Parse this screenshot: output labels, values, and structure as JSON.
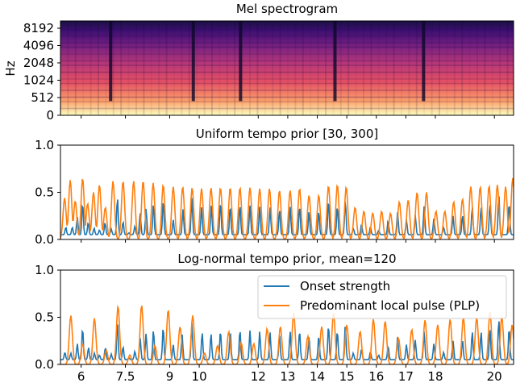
{
  "chart_data": [
    {
      "type": "heatmap",
      "title": "Mel spectrogram",
      "ylabel": "Hz",
      "yticks": [
        "0",
        "512",
        "1024",
        "2048",
        "4096",
        "8192"
      ],
      "xlim": [
        5.3,
        20.65
      ],
      "colormap": "magma",
      "dark_gaps_x": [
        7.0,
        9.8,
        11.4,
        14.6,
        17.6
      ]
    },
    {
      "type": "line",
      "title": "Uniform tempo prior [30, 300]",
      "xlim": [
        5.3,
        20.65
      ],
      "ylim": [
        0,
        1.0
      ],
      "yticks": [
        "0.0",
        "0.5",
        "1.0"
      ],
      "series": [
        {
          "color": "#1f77b4",
          "peaks": [
            [
              5.48,
              0.13
            ],
            [
              5.7,
              0.13
            ],
            [
              5.87,
              0.24
            ],
            [
              6.05,
              0.39
            ],
            [
              6.24,
              0.18
            ],
            [
              6.44,
              0.12
            ],
            [
              6.62,
              0.1
            ],
            [
              6.81,
              0.18
            ],
            [
              7.02,
              0.11
            ],
            [
              7.23,
              0.45
            ],
            [
              7.42,
              0.19
            ],
            [
              7.62,
              0.07
            ],
            [
              7.82,
              0.14
            ],
            [
              8.0,
              0.28
            ],
            [
              8.2,
              0.33
            ],
            [
              8.45,
              0.38
            ],
            [
              8.78,
              0.42
            ],
            [
              9.12,
              0.21
            ],
            [
              9.45,
              0.32
            ],
            [
              9.75,
              0.44
            ],
            [
              10.08,
              0.34
            ],
            [
              10.41,
              0.36
            ],
            [
              10.72,
              0.4
            ],
            [
              11.05,
              0.36
            ],
            [
              11.38,
              0.37
            ],
            [
              11.72,
              0.36
            ],
            [
              12.05,
              0.35
            ],
            [
              12.4,
              0.34
            ],
            [
              12.72,
              0.32
            ],
            [
              13.08,
              0.35
            ],
            [
              13.4,
              0.36
            ],
            [
              13.72,
              0.3
            ],
            [
              14.05,
              0.3
            ],
            [
              14.38,
              0.42
            ],
            [
              14.68,
              0.36
            ],
            [
              14.95,
              0.42
            ],
            [
              15.22,
              0.12
            ],
            [
              15.5,
              0.16
            ],
            [
              15.8,
              0.13
            ],
            [
              16.08,
              0.1
            ],
            [
              16.4,
              0.2
            ],
            [
              16.72,
              0.29
            ],
            [
              17.02,
              0.21
            ],
            [
              17.32,
              0.26
            ],
            [
              17.62,
              0.35
            ],
            [
              17.95,
              0.22
            ],
            [
              18.28,
              0.13
            ],
            [
              18.6,
              0.25
            ],
            [
              18.92,
              0.26
            ],
            [
              19.25,
              0.35
            ],
            [
              19.55,
              0.35
            ],
            [
              19.85,
              0.38
            ],
            [
              20.15,
              0.48
            ],
            [
              20.5,
              0.39
            ]
          ]
        },
        {
          "color": "#ff7f0e",
          "peaks": [
            [
              5.44,
              0.44
            ],
            [
              5.63,
              0.63
            ],
            [
              5.8,
              0.41
            ],
            [
              6.05,
              0.65
            ],
            [
              6.22,
              0.38
            ],
            [
              6.42,
              0.5
            ],
            [
              6.62,
              0.58
            ],
            [
              6.82,
              0.34
            ],
            [
              7.08,
              0.62
            ],
            [
              7.42,
              0.62
            ],
            [
              7.78,
              0.62
            ],
            [
              8.1,
              0.62
            ],
            [
              8.44,
              0.6
            ],
            [
              8.78,
              0.58
            ],
            [
              9.12,
              0.56
            ],
            [
              9.44,
              0.56
            ],
            [
              9.76,
              0.55
            ],
            [
              10.08,
              0.54
            ],
            [
              10.4,
              0.55
            ],
            [
              10.72,
              0.55
            ],
            [
              11.05,
              0.55
            ],
            [
              11.38,
              0.55
            ],
            [
              11.72,
              0.55
            ],
            [
              12.05,
              0.54
            ],
            [
              12.38,
              0.54
            ],
            [
              12.72,
              0.52
            ],
            [
              13.08,
              0.52
            ],
            [
              13.4,
              0.54
            ],
            [
              13.72,
              0.47
            ],
            [
              14.05,
              0.47
            ],
            [
              14.38,
              0.57
            ],
            [
              14.68,
              0.58
            ],
            [
              14.98,
              0.56
            ],
            [
              15.28,
              0.34
            ],
            [
              15.58,
              0.3
            ],
            [
              15.88,
              0.28
            ],
            [
              16.18,
              0.3
            ],
            [
              16.48,
              0.28
            ],
            [
              16.78,
              0.4
            ],
            [
              17.08,
              0.42
            ],
            [
              17.38,
              0.5
            ],
            [
              17.7,
              0.5
            ],
            [
              18.02,
              0.3
            ],
            [
              18.32,
              0.3
            ],
            [
              18.62,
              0.4
            ],
            [
              18.92,
              0.43
            ],
            [
              19.2,
              0.56
            ],
            [
              19.52,
              0.56
            ],
            [
              19.82,
              0.57
            ],
            [
              20.1,
              0.58
            ],
            [
              20.38,
              0.56
            ],
            [
              20.62,
              0.65
            ]
          ]
        }
      ]
    },
    {
      "type": "line",
      "title": "Log-normal tempo prior, mean=120",
      "xlim": [
        5.3,
        20.65
      ],
      "ylim": [
        0,
        1.0
      ],
      "yticks": [
        "0.0",
        "0.5",
        "1.0"
      ],
      "xticks": [
        6,
        7.5,
        9,
        10,
        12,
        13,
        14,
        15,
        16,
        17,
        18,
        20
      ],
      "xticklabels": [
        "6",
        "7.5",
        "9",
        "10",
        "12",
        "13",
        "14",
        "15",
        "16",
        "17",
        "18",
        "20"
      ],
      "legend": "top-right",
      "series": [
        {
          "name": "Onset strength",
          "color": "#1f77b4",
          "peaks": [
            [
              5.45,
              0.13
            ],
            [
              5.65,
              0.12
            ],
            [
              5.87,
              0.22
            ],
            [
              6.05,
              0.39
            ],
            [
              6.25,
              0.18
            ],
            [
              6.45,
              0.12
            ],
            [
              6.62,
              0.1
            ],
            [
              6.82,
              0.18
            ],
            [
              7.02,
              0.11
            ],
            [
              7.23,
              0.45
            ],
            [
              7.42,
              0.19
            ],
            [
              7.62,
              0.07
            ],
            [
              7.82,
              0.14
            ],
            [
              8.0,
              0.28
            ],
            [
              8.2,
              0.33
            ],
            [
              8.45,
              0.37
            ],
            [
              8.78,
              0.4
            ],
            [
              9.12,
              0.21
            ],
            [
              9.42,
              0.32
            ],
            [
              9.75,
              0.44
            ],
            [
              10.1,
              0.34
            ],
            [
              10.4,
              0.33
            ],
            [
              10.72,
              0.36
            ],
            [
              11.05,
              0.36
            ],
            [
              11.38,
              0.37
            ],
            [
              11.72,
              0.36
            ],
            [
              12.05,
              0.35
            ],
            [
              12.4,
              0.34
            ],
            [
              12.72,
              0.32
            ],
            [
              13.08,
              0.35
            ],
            [
              13.4,
              0.36
            ],
            [
              13.72,
              0.3
            ],
            [
              14.05,
              0.3
            ],
            [
              14.38,
              0.42
            ],
            [
              14.68,
              0.36
            ],
            [
              14.95,
              0.42
            ],
            [
              15.22,
              0.12
            ],
            [
              15.5,
              0.16
            ],
            [
              15.8,
              0.13
            ],
            [
              16.08,
              0.1
            ],
            [
              16.4,
              0.2
            ],
            [
              16.72,
              0.29
            ],
            [
              17.02,
              0.21
            ],
            [
              17.32,
              0.26
            ],
            [
              17.62,
              0.35
            ],
            [
              17.95,
              0.22
            ],
            [
              18.28,
              0.13
            ],
            [
              18.6,
              0.25
            ],
            [
              18.92,
              0.26
            ],
            [
              19.25,
              0.35
            ],
            [
              19.55,
              0.35
            ],
            [
              19.85,
              0.38
            ],
            [
              20.15,
              0.48
            ],
            [
              20.5,
              0.39
            ]
          ]
        },
        {
          "name": "Predominant local pulse (PLP)",
          "color": "#ff7f0e",
          "peaks": [
            [
              5.65,
              0.52
            ],
            [
              6.05,
              0.22
            ],
            [
              6.45,
              0.49
            ],
            [
              6.85,
              0.15
            ],
            [
              7.25,
              0.62
            ],
            [
              7.65,
              0.1
            ],
            [
              8.05,
              0.63
            ],
            [
              8.5,
              0.2
            ],
            [
              8.95,
              0.58
            ],
            [
              9.35,
              0.4
            ],
            [
              9.78,
              0.52
            ],
            [
              10.18,
              0.12
            ],
            [
              10.62,
              0.2
            ],
            [
              11.0,
              0.35
            ],
            [
              11.42,
              0.23
            ],
            [
              11.85,
              0.22
            ],
            [
              12.3,
              0.38
            ],
            [
              12.75,
              0.4
            ],
            [
              13.2,
              0.55
            ],
            [
              13.68,
              0.3
            ],
            [
              14.15,
              0.4
            ],
            [
              14.55,
              0.55
            ],
            [
              15.0,
              0.42
            ],
            [
              15.45,
              0.35
            ],
            [
              15.9,
              0.48
            ],
            [
              16.3,
              0.46
            ],
            [
              16.75,
              0.28
            ],
            [
              17.2,
              0.37
            ],
            [
              17.65,
              0.47
            ],
            [
              18.08,
              0.42
            ],
            [
              18.5,
              0.48
            ],
            [
              18.95,
              0.5
            ],
            [
              19.4,
              0.5
            ],
            [
              19.85,
              0.56
            ],
            [
              20.25,
              0.51
            ],
            [
              20.6,
              0.42
            ]
          ]
        }
      ]
    }
  ]
}
